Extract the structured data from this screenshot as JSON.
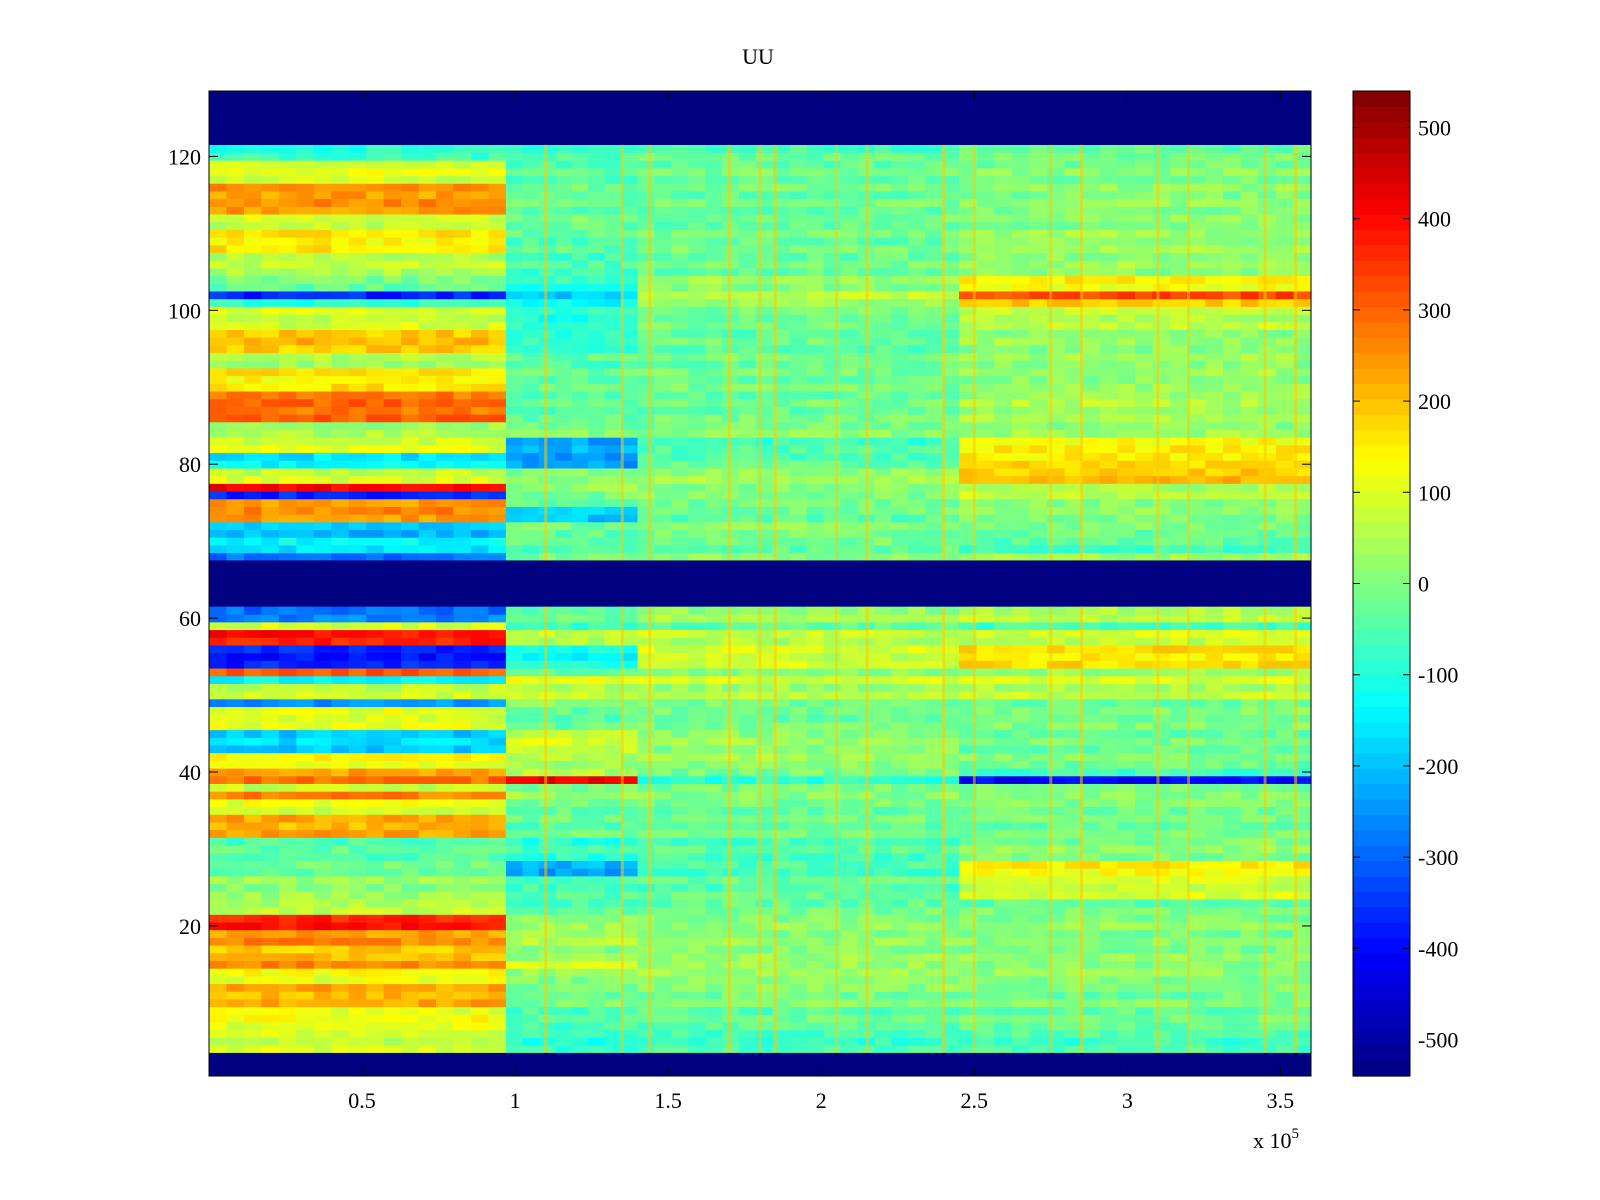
{
  "chart_data": {
    "type": "heatmap",
    "title": "UU",
    "xlabel": "",
    "ylabel": "",
    "x_multiplier_label": {
      "base": "x 10",
      "exponent": "5"
    },
    "xlim": [
      0,
      3.6
    ],
    "ylim": [
      0.5,
      128.5
    ],
    "x_ticks": [
      0.5,
      1,
      1.5,
      2,
      2.5,
      3,
      3.5
    ],
    "x_tick_labels": [
      "0.5",
      "1",
      "1.5",
      "2",
      "2.5",
      "3",
      "3.5"
    ],
    "y_ticks": [
      20,
      40,
      60,
      80,
      100,
      120
    ],
    "y_tick_labels": [
      "20",
      "40",
      "60",
      "80",
      "100",
      "120"
    ],
    "colorbar": {
      "colormap": "jet",
      "clim": [
        -540,
        540
      ],
      "ticks": [
        -500,
        -400,
        -300,
        -200,
        -100,
        0,
        100,
        200,
        300,
        400,
        500
      ],
      "tick_labels": [
        "-500",
        "-400",
        "-300",
        "-200",
        "-100",
        "0",
        "100",
        "200",
        "300",
        "400",
        "500"
      ]
    },
    "masked_rows": [
      [
        1,
        3
      ],
      [
        62,
        67
      ],
      [
        122,
        128
      ]
    ],
    "time_segments": [
      [
        0,
        0.97
      ],
      [
        0.97,
        1.4
      ],
      [
        1.4,
        2.45
      ],
      [
        2.45,
        3.6
      ]
    ],
    "row_values": [
      {
        "rows": [
          4,
          6
        ],
        "values": [
          80,
          -90,
          -70,
          -60
        ]
      },
      {
        "rows": [
          7,
          9
        ],
        "values": [
          120,
          -50,
          -30,
          -20
        ]
      },
      {
        "rows": [
          10,
          12
        ],
        "values": [
          220,
          -20,
          0,
          -10
        ]
      },
      {
        "rows": [
          13,
          14
        ],
        "values": [
          120,
          10,
          20,
          10
        ]
      },
      {
        "rows": [
          15,
          15
        ],
        "values": [
          280,
          120,
          40,
          20
        ]
      },
      {
        "rows": [
          16,
          17
        ],
        "values": [
          200,
          20,
          20,
          10
        ]
      },
      {
        "rows": [
          18,
          19
        ],
        "values": [
          250,
          40,
          10,
          0
        ]
      },
      {
        "rows": [
          20,
          21
        ],
        "values": [
          380,
          20,
          10,
          10
        ]
      },
      {
        "rows": [
          22,
          23
        ],
        "values": [
          60,
          -40,
          -20,
          -20
        ]
      },
      {
        "rows": [
          24,
          26
        ],
        "values": [
          20,
          -60,
          -40,
          80
        ]
      },
      {
        "rows": [
          27,
          28
        ],
        "values": [
          -20,
          -220,
          -60,
          140
        ]
      },
      {
        "rows": [
          29,
          31
        ],
        "values": [
          -40,
          -80,
          -50,
          10
        ]
      },
      {
        "rows": [
          32,
          34
        ],
        "values": [
          220,
          -30,
          -20,
          -20
        ]
      },
      {
        "rows": [
          35,
          36
        ],
        "values": [
          100,
          -20,
          -20,
          -10
        ]
      },
      {
        "rows": [
          37,
          37
        ],
        "values": [
          280,
          40,
          20,
          20
        ]
      },
      {
        "rows": [
          38,
          38
        ],
        "values": [
          60,
          -20,
          -20,
          -20
        ]
      },
      {
        "rows": [
          39,
          39
        ],
        "values": [
          300,
          440,
          -80,
          -400
        ]
      },
      {
        "rows": [
          40,
          40
        ],
        "values": [
          220,
          40,
          -20,
          -80
        ]
      },
      {
        "rows": [
          41,
          42
        ],
        "values": [
          120,
          40,
          20,
          -10
        ]
      },
      {
        "rows": [
          43,
          45
        ],
        "values": [
          -180,
          80,
          20,
          -20
        ]
      },
      {
        "rows": [
          46,
          48
        ],
        "values": [
          100,
          -40,
          -20,
          -10
        ]
      },
      {
        "rows": [
          49,
          49
        ],
        "values": [
          -240,
          20,
          0,
          -10
        ]
      },
      {
        "rows": [
          50,
          51
        ],
        "values": [
          80,
          60,
          40,
          60
        ]
      },
      {
        "rows": [
          52,
          52
        ],
        "values": [
          -150,
          100,
          80,
          80
        ]
      },
      {
        "rows": [
          53,
          53
        ],
        "values": [
          320,
          -20,
          20,
          40
        ]
      },
      {
        "rows": [
          54,
          56
        ],
        "values": [
          -380,
          -120,
          80,
          160
        ]
      },
      {
        "rows": [
          57,
          58
        ],
        "values": [
          380,
          60,
          60,
          80
        ]
      },
      {
        "rows": [
          59,
          59
        ],
        "values": [
          100,
          -60,
          -20,
          -50
        ]
      },
      {
        "rows": [
          60,
          61
        ],
        "values": [
          -280,
          -30,
          30,
          60
        ]
      },
      {
        "rows": [
          68,
          68
        ],
        "values": [
          -300,
          -20,
          0,
          20
        ]
      },
      {
        "rows": [
          69,
          70
        ],
        "values": [
          -150,
          -40,
          -20,
          -50
        ]
      },
      {
        "rows": [
          71,
          72
        ],
        "values": [
          -200,
          -20,
          0,
          -10
        ]
      },
      {
        "rows": [
          73,
          74
        ],
        "values": [
          250,
          -180,
          -30,
          10
        ]
      },
      {
        "rows": [
          75,
          75
        ],
        "values": [
          250,
          -20,
          0,
          20
        ]
      },
      {
        "rows": [
          76,
          76
        ],
        "values": [
          -380,
          -20,
          -10,
          60
        ]
      },
      {
        "rows": [
          77,
          77
        ],
        "values": [
          420,
          40,
          20,
          60
        ]
      },
      {
        "rows": [
          78,
          79
        ],
        "values": [
          80,
          10,
          30,
          200
        ]
      },
      {
        "rows": [
          80,
          81
        ],
        "values": [
          -150,
          -250,
          -40,
          160
        ]
      },
      {
        "rows": [
          82,
          83
        ],
        "values": [
          100,
          -220,
          -60,
          140
        ]
      },
      {
        "rows": [
          84,
          85
        ],
        "values": [
          40,
          0,
          0,
          20
        ]
      },
      {
        "rows": [
          86,
          89
        ],
        "values": [
          290,
          -40,
          -20,
          40
        ]
      },
      {
        "rows": [
          90,
          92
        ],
        "values": [
          150,
          -30,
          -20,
          20
        ]
      },
      {
        "rows": [
          93,
          94
        ],
        "values": [
          40,
          -40,
          -20,
          20
        ]
      },
      {
        "rows": [
          95,
          97
        ],
        "values": [
          200,
          -80,
          -30,
          20
        ]
      },
      {
        "rows": [
          98,
          100
        ],
        "values": [
          80,
          -100,
          -20,
          60
        ]
      },
      {
        "rows": [
          101,
          101
        ],
        "values": [
          -80,
          -120,
          40,
          200
        ]
      },
      {
        "rows": [
          102,
          102
        ],
        "values": [
          -380,
          -200,
          60,
          320
        ]
      },
      {
        "rows": [
          103,
          104
        ],
        "values": [
          -20,
          -80,
          20,
          140
        ]
      },
      {
        "rows": [
          105,
          107
        ],
        "values": [
          60,
          -60,
          -20,
          20
        ]
      },
      {
        "rows": [
          108,
          110
        ],
        "values": [
          150,
          -40,
          -20,
          20
        ]
      },
      {
        "rows": [
          111,
          112
        ],
        "values": [
          80,
          -20,
          -20,
          10
        ]
      },
      {
        "rows": [
          113,
          116
        ],
        "values": [
          250,
          -30,
          -20,
          10
        ]
      },
      {
        "rows": [
          117,
          119
        ],
        "values": [
          100,
          -40,
          -20,
          0
        ]
      },
      {
        "rows": [
          120,
          121
        ],
        "values": [
          -80,
          -60,
          -40,
          -20
        ]
      }
    ],
    "vertical_streaks_x": [
      1.1,
      1.35,
      1.44,
      1.7,
      1.8,
      1.85,
      2.05,
      2.15,
      2.4,
      2.5,
      2.75,
      2.85,
      3.1,
      3.2,
      3.45,
      3.55
    ]
  }
}
